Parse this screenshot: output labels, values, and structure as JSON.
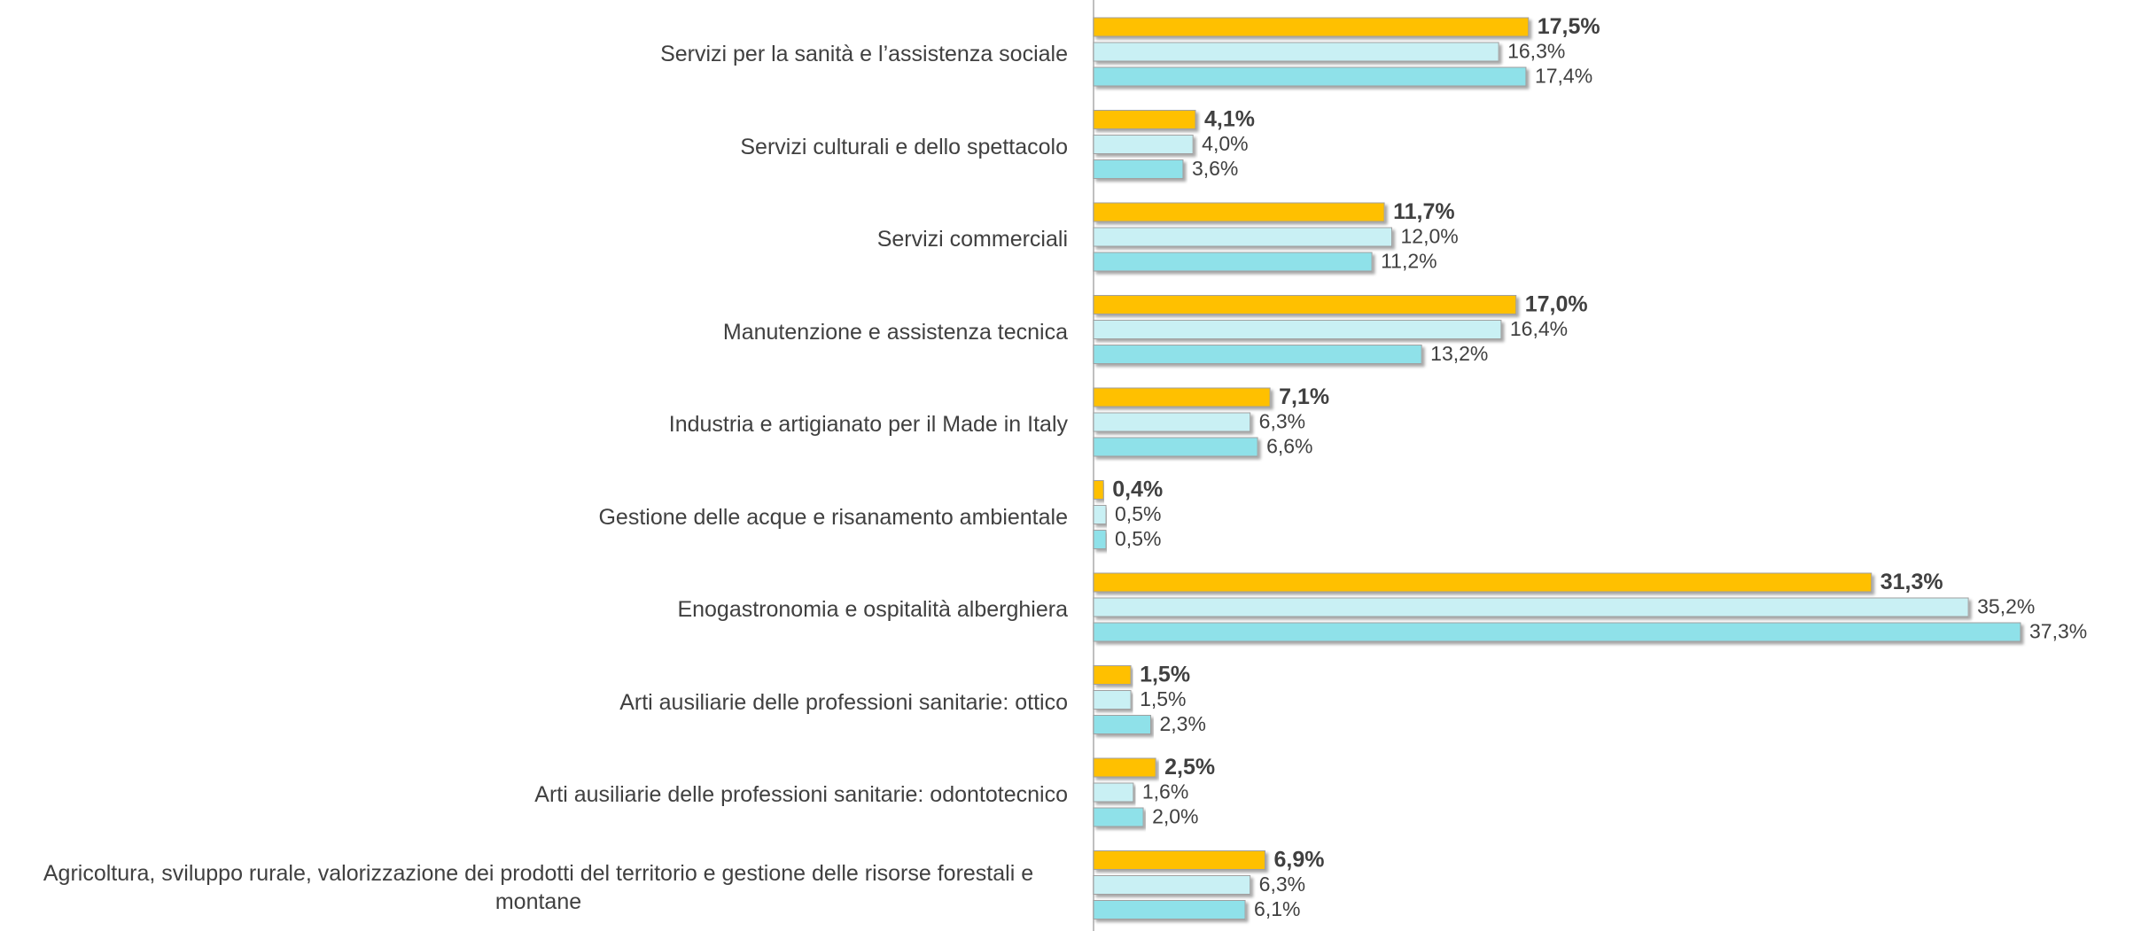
{
  "chart_data": {
    "type": "bar",
    "orientation": "horizontal",
    "categories": [
      "Servizi per la sanità e l’assistenza sociale",
      "Servizi culturali e dello spettacolo",
      "Servizi commerciali",
      "Manutenzione e assistenza tecnica",
      "Industria e artigianato per il Made in Italy",
      "Gestione delle acque e risanamento ambientale",
      "Enogastronomia e ospitalità alberghiera",
      "Arti ausiliarie delle professioni sanitarie: ottico",
      "Arti ausiliarie delle professioni sanitarie: odontotecnico",
      "Agricoltura, sviluppo rurale, valorizzazione dei prodotti del territorio e gestione delle risorse forestali e montane"
    ],
    "series": [
      {
        "color": "#ffc000",
        "values": [
          17.5,
          4.1,
          11.7,
          17.0,
          7.1,
          0.4,
          31.3,
          1.5,
          2.5,
          6.9
        ],
        "value_labels": [
          "17,5%",
          "4,1%",
          "11,7%",
          "17,0%",
          "7,1%",
          "0,4%",
          "31,3%",
          "1,5%",
          "2,5%",
          "6,9%"
        ]
      },
      {
        "color": "#c9f0f4",
        "values": [
          16.3,
          4.0,
          12.0,
          16.4,
          6.3,
          0.5,
          35.2,
          1.5,
          1.6,
          6.3
        ],
        "value_labels": [
          "16,3%",
          "4,0%",
          "12,0%",
          "16,4%",
          "6,3%",
          "0,5%",
          "35,2%",
          "1,5%",
          "1,6%",
          "6,3%"
        ]
      },
      {
        "color": "#8fe1e9",
        "values": [
          17.4,
          3.6,
          11.2,
          13.2,
          6.6,
          0.5,
          37.3,
          2.3,
          2.0,
          6.1
        ],
        "value_labels": [
          "17,4%",
          "3,6%",
          "11,2%",
          "13,2%",
          "6,6%",
          "0,5%",
          "37,3%",
          "2,3%",
          "2,0%",
          "6,1%"
        ]
      }
    ]
  }
}
